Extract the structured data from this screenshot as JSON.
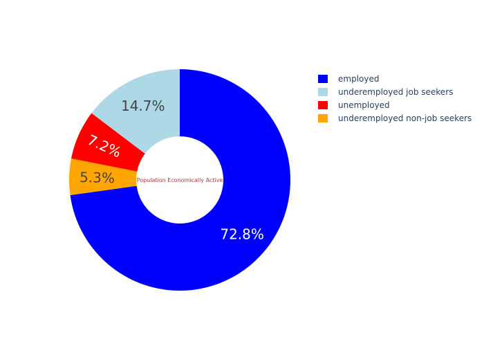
{
  "chart_data": {
    "type": "pie",
    "hole": true,
    "center_label": "Population Economically Active",
    "slices": [
      {
        "label": "employed",
        "value": 72.8,
        "display": "72.8%",
        "color": "#0000ff",
        "text_color": "#ffffff"
      },
      {
        "label": "underemployed non-job seekers",
        "value": 5.3,
        "display": "5.3%",
        "color": "#ffa500",
        "text_color": "#444444"
      },
      {
        "label": "unemployed",
        "value": 7.2,
        "display": "7.2%",
        "color": "#ff0000",
        "text_color": "#ffffff"
      },
      {
        "label": "underemployed job seekers",
        "value": 14.7,
        "display": "14.7%",
        "color": "#add8e6",
        "text_color": "#444444"
      }
    ],
    "legend": {
      "placement": "top-right",
      "order": [
        "employed",
        "underemployed job seekers",
        "unemployed",
        "underemployed non-job seekers"
      ]
    }
  }
}
